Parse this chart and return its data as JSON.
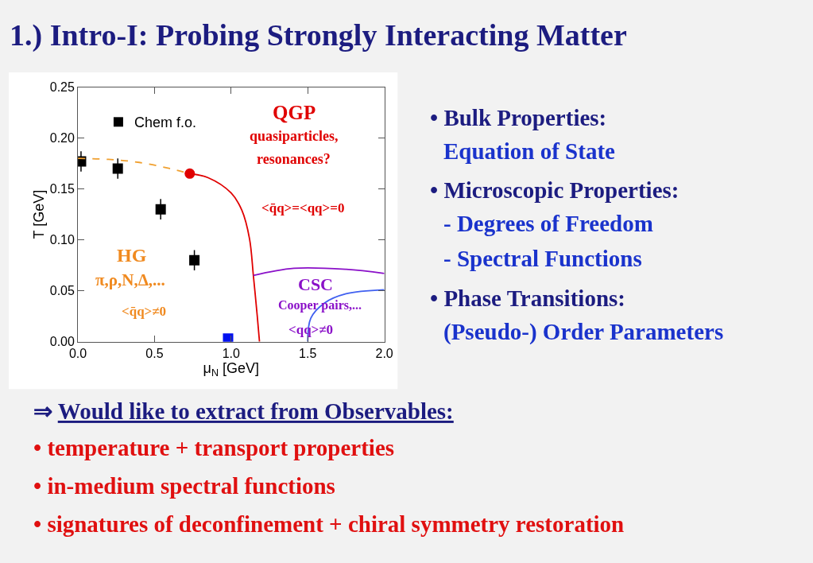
{
  "chart_data": {
    "type": "scatter",
    "title": "1.) Intro-I: Probing Strongly Interacting Matter",
    "xlabel": "μ$_{N}$ [GeV]",
    "ylabel": "T [GeV]",
    "xlim": [
      0,
      2.0
    ],
    "ylim": [
      0,
      0.25
    ],
    "xticks": [
      {
        "value": 0,
        "label": "0.0"
      },
      0.5,
      {
        "value": 1,
        "label": "1.0"
      },
      1.5,
      {
        "value": 2,
        "label": "2.0"
      }
    ],
    "yticks": [
      {
        "value": 0,
        "label": "0.00"
      },
      0.05,
      {
        "value": 0.1,
        "label": "0.10"
      },
      0.15,
      {
        "value": 0.2,
        "label": "0.20"
      },
      0.25
    ],
    "legend": "top left",
    "series": [
      {
        "name": "Chem f.o.",
        "marker": "square",
        "color": "#000000",
        "x": [
          0.02,
          0.26,
          0.54,
          0.76
        ],
        "values": [
          0.177,
          0.17,
          0.13,
          0.08
        ],
        "errors": [
          0.01,
          0.01,
          0.01,
          0.01
        ],
        "xerrors": [
          null,
          null,
          null,
          0.02
        ]
      },
      {
        "type": "line",
        "line_style": "dashed",
        "marker": "none",
        "color": "#f0a030",
        "x": [
          0.0,
          0.2,
          0.4,
          0.6,
          0.73
        ],
        "values": [
          0.18,
          0.179,
          0.176,
          0.17,
          0.165
        ]
      },
      {
        "type": "line",
        "line_style": "solid",
        "marker": "none",
        "color": "#e00000",
        "x": [
          0.73,
          0.85,
          1.0,
          1.07,
          1.12,
          1.145,
          1.17,
          1.185
        ],
        "values": [
          0.165,
          0.161,
          0.146,
          0.129,
          0.101,
          0.065,
          0.026,
          0.0
        ]
      },
      {
        "marker": "circle",
        "color": "#e00000",
        "x": [
          0.73
        ],
        "values": [
          0.165
        ]
      },
      {
        "type": "line",
        "line_style": "solid",
        "marker": "none",
        "color": "#8a10c8",
        "x": [
          1.145,
          1.41,
          1.75,
          2.0
        ],
        "values": [
          0.065,
          0.072,
          0.071,
          0.067
        ]
      },
      {
        "type": "line",
        "line_style": "solid",
        "marker": "none",
        "color": "#4060f0",
        "x": [
          1.5,
          1.52,
          1.61,
          1.75,
          2.0
        ],
        "values": [
          0.0,
          0.023,
          0.038,
          0.047,
          0.051
        ]
      },
      {
        "marker": "square",
        "color": "#0010f0",
        "x": [
          0.98
        ],
        "values": [
          0.003
        ]
      }
    ],
    "annotations": [
      "QGP",
      "quasiparticles,",
      "resonances?",
      "<q̄q>=<qq>=0",
      "HG",
      "π,ρ,N,Δ,...",
      "<q̄q>≠0",
      "CSC",
      "Cooper pairs,...",
      "<qq>≠0",
      "• Bulk Properties:",
      "Equation of State",
      "• Microscopic Properties:",
      "- Degrees of Freedom",
      "- Spectral Functions",
      "• Phase Transitions:",
      "(Pseudo-) Order Parameters",
      "⇒ Would like to extract from Observables:",
      "• temperature + transport properties",
      "• in-medium spectral functions",
      "• signatures of deconfinement + chiral symmetry restoration"
    ]
  }
}
